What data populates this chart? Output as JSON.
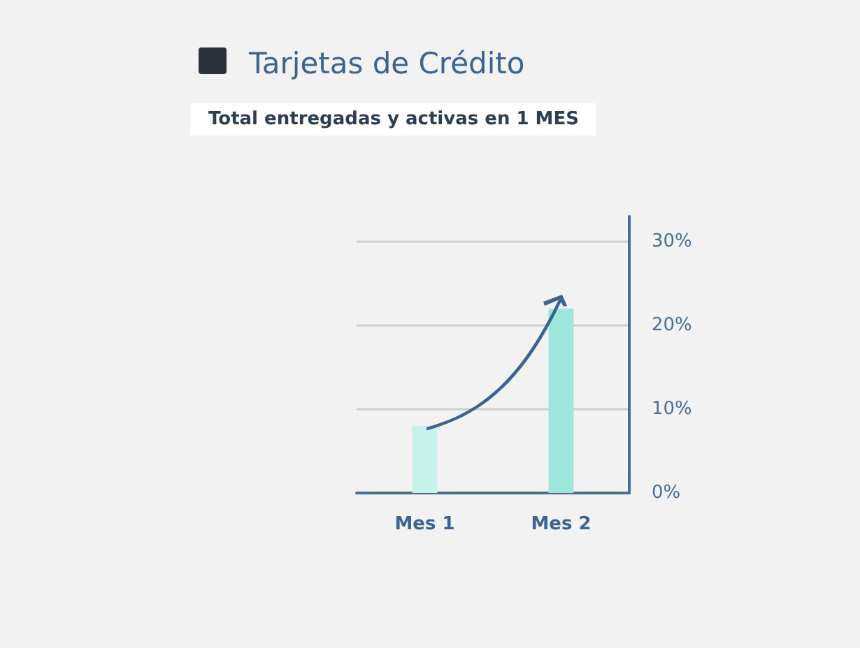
{
  "chart_data": {
    "type": "bar",
    "title": "Tarjetas de Crédito",
    "subtitle": "Total entregadas y activas en 1 MES",
    "categories": [
      "Mes 1",
      "Mes 2"
    ],
    "values": [
      8,
      22
    ],
    "colors": [
      "#c6f2ec",
      "#9de6dd"
    ],
    "ylim": [
      0,
      33
    ],
    "yticks": [
      {
        "value": 0,
        "label": "0%"
      },
      {
        "value": 10,
        "label": "10%"
      },
      {
        "value": 20,
        "label": "20%"
      },
      {
        "value": 30,
        "label": "30%"
      }
    ],
    "grid": "y"
  }
}
